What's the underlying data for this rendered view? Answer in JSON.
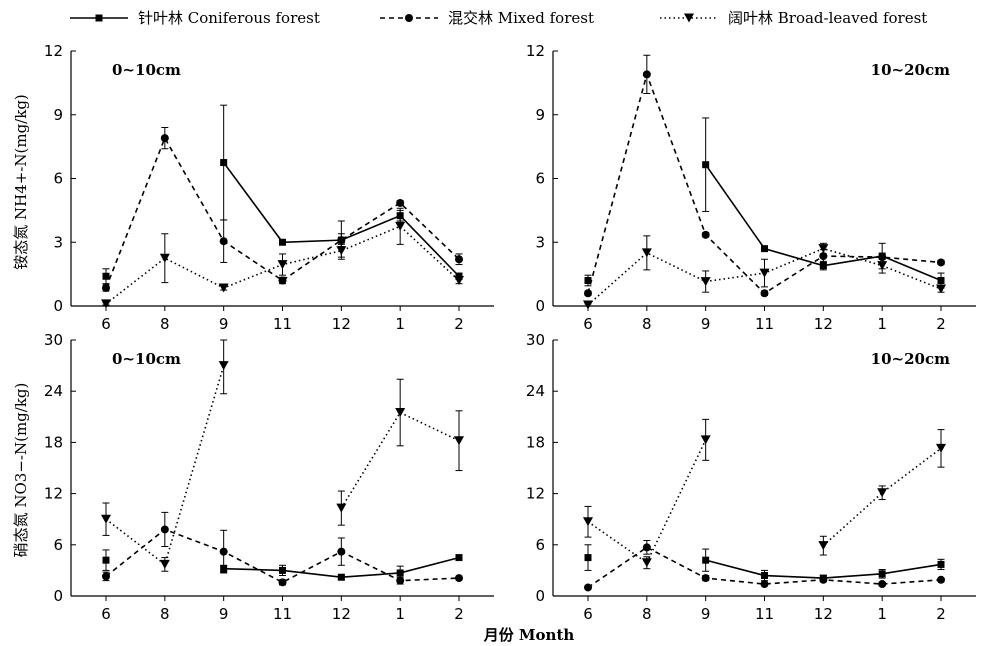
{
  "legend": [
    {
      "label": "针叶林 Coniferous forest",
      "marker": "square",
      "dash": "solid"
    },
    {
      "label": "混交林 Mixed forest",
      "marker": "circle",
      "dash": "dashed"
    },
    {
      "label": "阔叶林 Broad-leaved forest",
      "marker": "triangle-down",
      "dash": "dotted"
    }
  ],
  "xlabel": "月份 Month",
  "ylabel_top": "铵态氮 NH4+-N(mg/kg)",
  "ylabel_bottom": "硝态氮 NO3−-N(mg/kg)",
  "chart_data": [
    {
      "type": "line",
      "panel": "0~10cm",
      "categories": [
        "6",
        "8",
        "9",
        "11",
        "12",
        "1",
        "2"
      ],
      "ylim": [
        0,
        12
      ],
      "yticks": [
        0,
        3,
        6,
        9,
        12
      ],
      "series": [
        {
          "name": "针叶林 Coniferous forest",
          "values": [
            1.4,
            null,
            6.75,
            3.0,
            3.1,
            4.25,
            1.4
          ],
          "err": [
            0.35,
            null,
            2.7,
            0.1,
            0.9,
            0.25,
            0.15
          ],
          "segments": [
            [
              0,
              0
            ],
            [
              2,
              6
            ]
          ]
        },
        {
          "name": "混交林 Mixed forest",
          "values": [
            0.85,
            7.9,
            3.05,
            1.2,
            3.1,
            4.85,
            2.2
          ],
          "err": [
            0.15,
            0.5,
            1.0,
            0.15,
            0.3,
            0.1,
            0.25
          ],
          "segments": [
            [
              0,
              6
            ]
          ]
        },
        {
          "name": "阔叶林 Broad-leaved forest",
          "values": [
            0.1,
            2.25,
            0.85,
            1.95,
            2.6,
            3.75,
            1.2
          ],
          "err": [
            0.05,
            1.15,
            0.1,
            0.5,
            0.3,
            0.85,
            0.15
          ],
          "segments": [
            [
              0,
              6
            ]
          ]
        }
      ]
    },
    {
      "type": "line",
      "panel": "10~20cm",
      "categories": [
        "6",
        "8",
        "9",
        "11",
        "12",
        "1",
        "2"
      ],
      "ylim": [
        0,
        12
      ],
      "yticks": [
        0,
        3,
        6,
        9,
        12
      ],
      "series": [
        {
          "name": "针叶林 Coniferous forest",
          "values": [
            1.2,
            null,
            6.65,
            2.7,
            1.9,
            2.35,
            1.2
          ],
          "err": [
            0.25,
            null,
            2.2,
            0.1,
            0.2,
            0.6,
            0.35
          ],
          "segments": [
            [
              0,
              0
            ],
            [
              2,
              6
            ]
          ]
        },
        {
          "name": "混交林 Mixed forest",
          "values": [
            0.6,
            10.9,
            3.35,
            0.6,
            2.35,
            2.3,
            2.05
          ],
          "err": [
            0.1,
            0.9,
            0.1,
            0.1,
            0.3,
            0.1,
            0.1
          ],
          "segments": [
            [
              0,
              6
            ]
          ]
        },
        {
          "name": "阔叶林 Broad-leaved forest",
          "values": [
            0.05,
            2.5,
            1.15,
            1.55,
            2.7,
            1.9,
            0.8
          ],
          "err": [
            0.05,
            0.8,
            0.5,
            0.65,
            0.25,
            0.35,
            0.15
          ],
          "segments": [
            [
              0,
              6
            ]
          ]
        }
      ]
    },
    {
      "type": "line",
      "panel": "0~10cm",
      "categories": [
        "6",
        "8",
        "9",
        "11",
        "12",
        "1",
        "2"
      ],
      "ylim": [
        0,
        30
      ],
      "yticks": [
        0,
        6,
        12,
        18,
        24,
        30
      ],
      "series": [
        {
          "name": "针叶林 Coniferous forest",
          "values": [
            4.2,
            null,
            3.2,
            3.0,
            2.2,
            2.7,
            4.5
          ],
          "err": [
            1.2,
            null,
            0.4,
            0.6,
            0.3,
            0.8,
            0.2
          ],
          "segments": [
            [
              0,
              0
            ],
            [
              2,
              6
            ]
          ]
        },
        {
          "name": "混交林 Mixed forest",
          "values": [
            2.3,
            7.8,
            5.2,
            1.6,
            5.2,
            1.8,
            2.1
          ],
          "err": [
            0.5,
            2.0,
            2.5,
            0.3,
            1.6,
            0.4,
            0.2
          ],
          "segments": [
            [
              0,
              6
            ]
          ]
        },
        {
          "name": "阔叶林 Broad-leaved forest",
          "values": [
            9.0,
            3.7,
            27.0,
            null,
            10.3,
            21.5,
            18.2
          ],
          "err": [
            1.9,
            0.8,
            3.3,
            null,
            2.0,
            3.9,
            3.5
          ],
          "segments": [
            [
              0,
              2
            ],
            [
              4,
              6
            ]
          ]
        }
      ]
    },
    {
      "type": "line",
      "panel": "10~20cm",
      "categories": [
        "6",
        "8",
        "9",
        "11",
        "12",
        "1",
        "2"
      ],
      "ylim": [
        0,
        30
      ],
      "yticks": [
        0,
        6,
        12,
        18,
        24,
        30
      ],
      "series": [
        {
          "name": "针叶林 Coniferous forest",
          "values": [
            4.5,
            null,
            4.2,
            2.4,
            2.1,
            2.6,
            3.7
          ],
          "err": [
            1.5,
            null,
            1.3,
            0.6,
            0.3,
            0.5,
            0.6
          ],
          "segments": [
            [
              0,
              0
            ],
            [
              2,
              6
            ]
          ]
        },
        {
          "name": "混交林 Mixed forest",
          "values": [
            1.0,
            5.7,
            2.1,
            1.4,
            1.9,
            1.4,
            1.9
          ],
          "err": [
            0.1,
            0.8,
            0.3,
            0.2,
            0.2,
            0.2,
            0.2
          ],
          "segments": [
            [
              0,
              6
            ]
          ]
        },
        {
          "name": "阔叶林 Broad-leaved forest",
          "values": [
            8.7,
            3.9,
            18.3,
            null,
            5.9,
            12.1,
            17.3
          ],
          "err": [
            1.8,
            0.7,
            2.4,
            null,
            1.1,
            0.8,
            2.2
          ],
          "segments": [
            [
              0,
              2
            ],
            [
              4,
              6
            ]
          ]
        }
      ]
    }
  ]
}
